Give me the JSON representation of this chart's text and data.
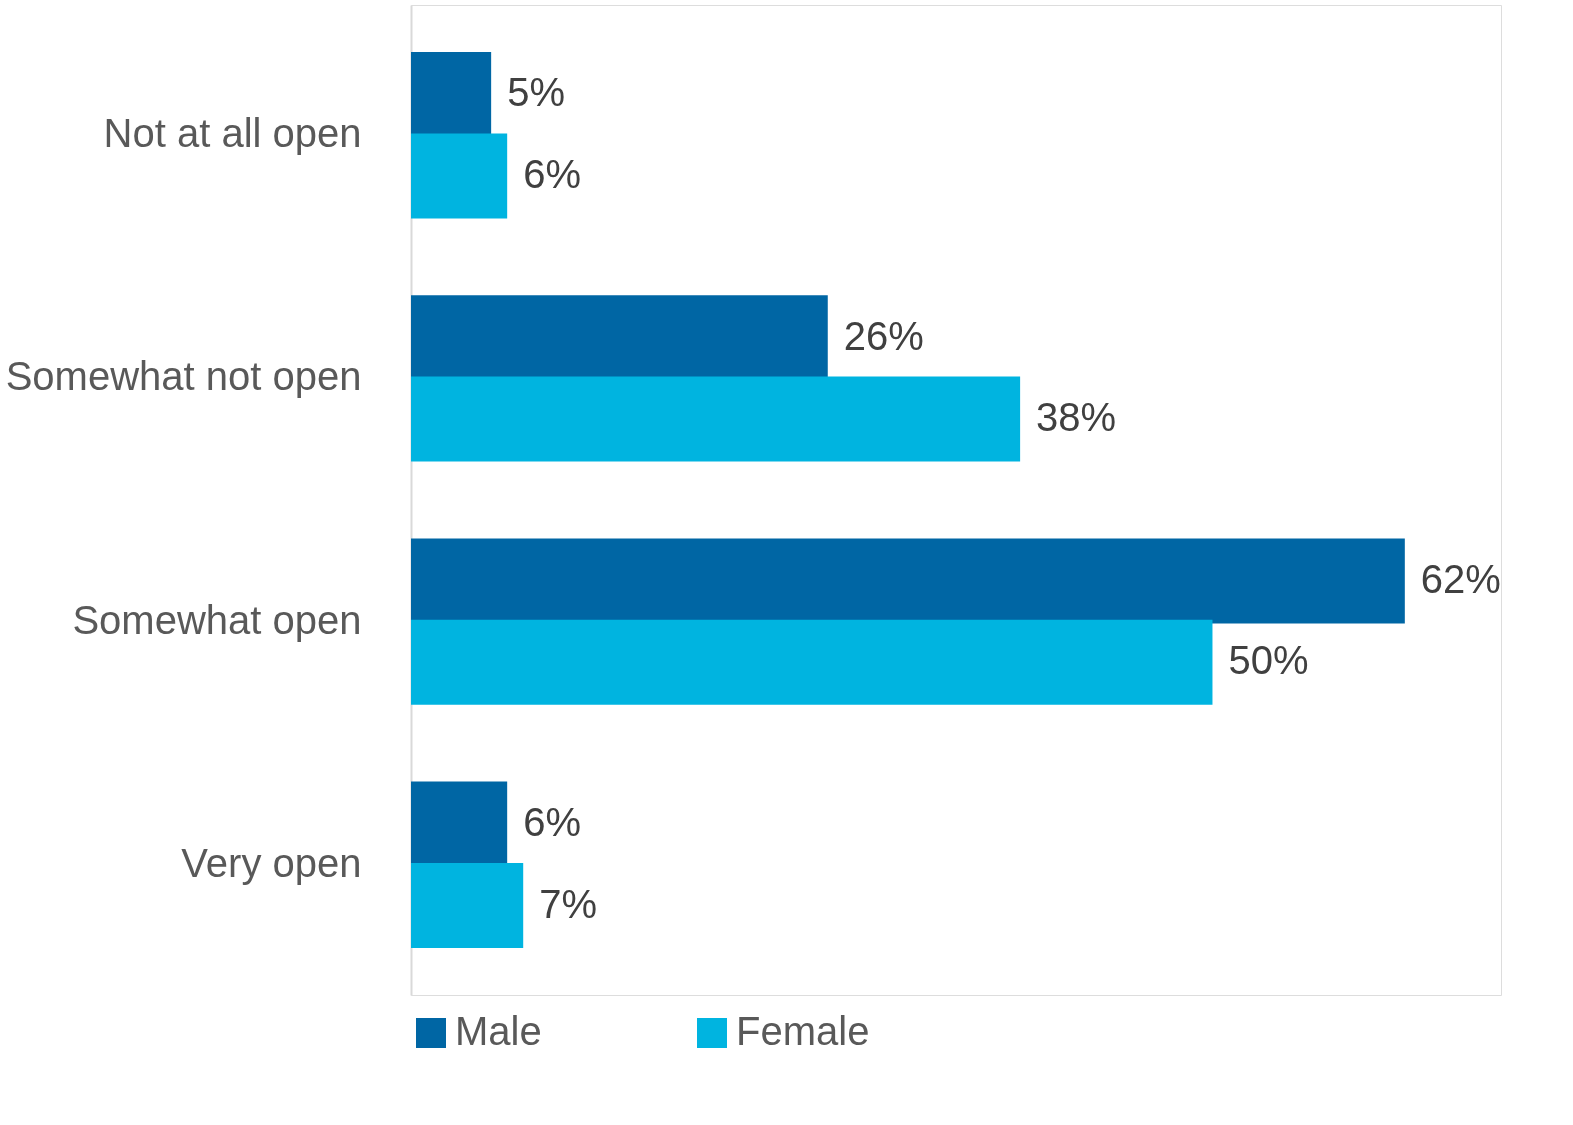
{
  "chart_data": {
    "type": "bar",
    "orientation": "horizontal",
    "categories": [
      "Not at all open",
      "Somewhat not open",
      "Somewhat open",
      "Very open"
    ],
    "series": [
      {
        "name": "Male",
        "color": "#0066a4",
        "values": [
          5,
          26,
          62,
          6
        ],
        "value_labels": [
          "5%",
          "26%",
          "62%",
          "6%"
        ]
      },
      {
        "name": "Female",
        "color": "#00b4e0",
        "values": [
          6,
          38,
          50,
          7
        ],
        "value_labels": [
          "6%",
          "38%",
          "50%",
          "7%"
        ]
      }
    ],
    "xlim": [
      0,
      68
    ],
    "tick_labels": "y",
    "legend": "bottom"
  }
}
